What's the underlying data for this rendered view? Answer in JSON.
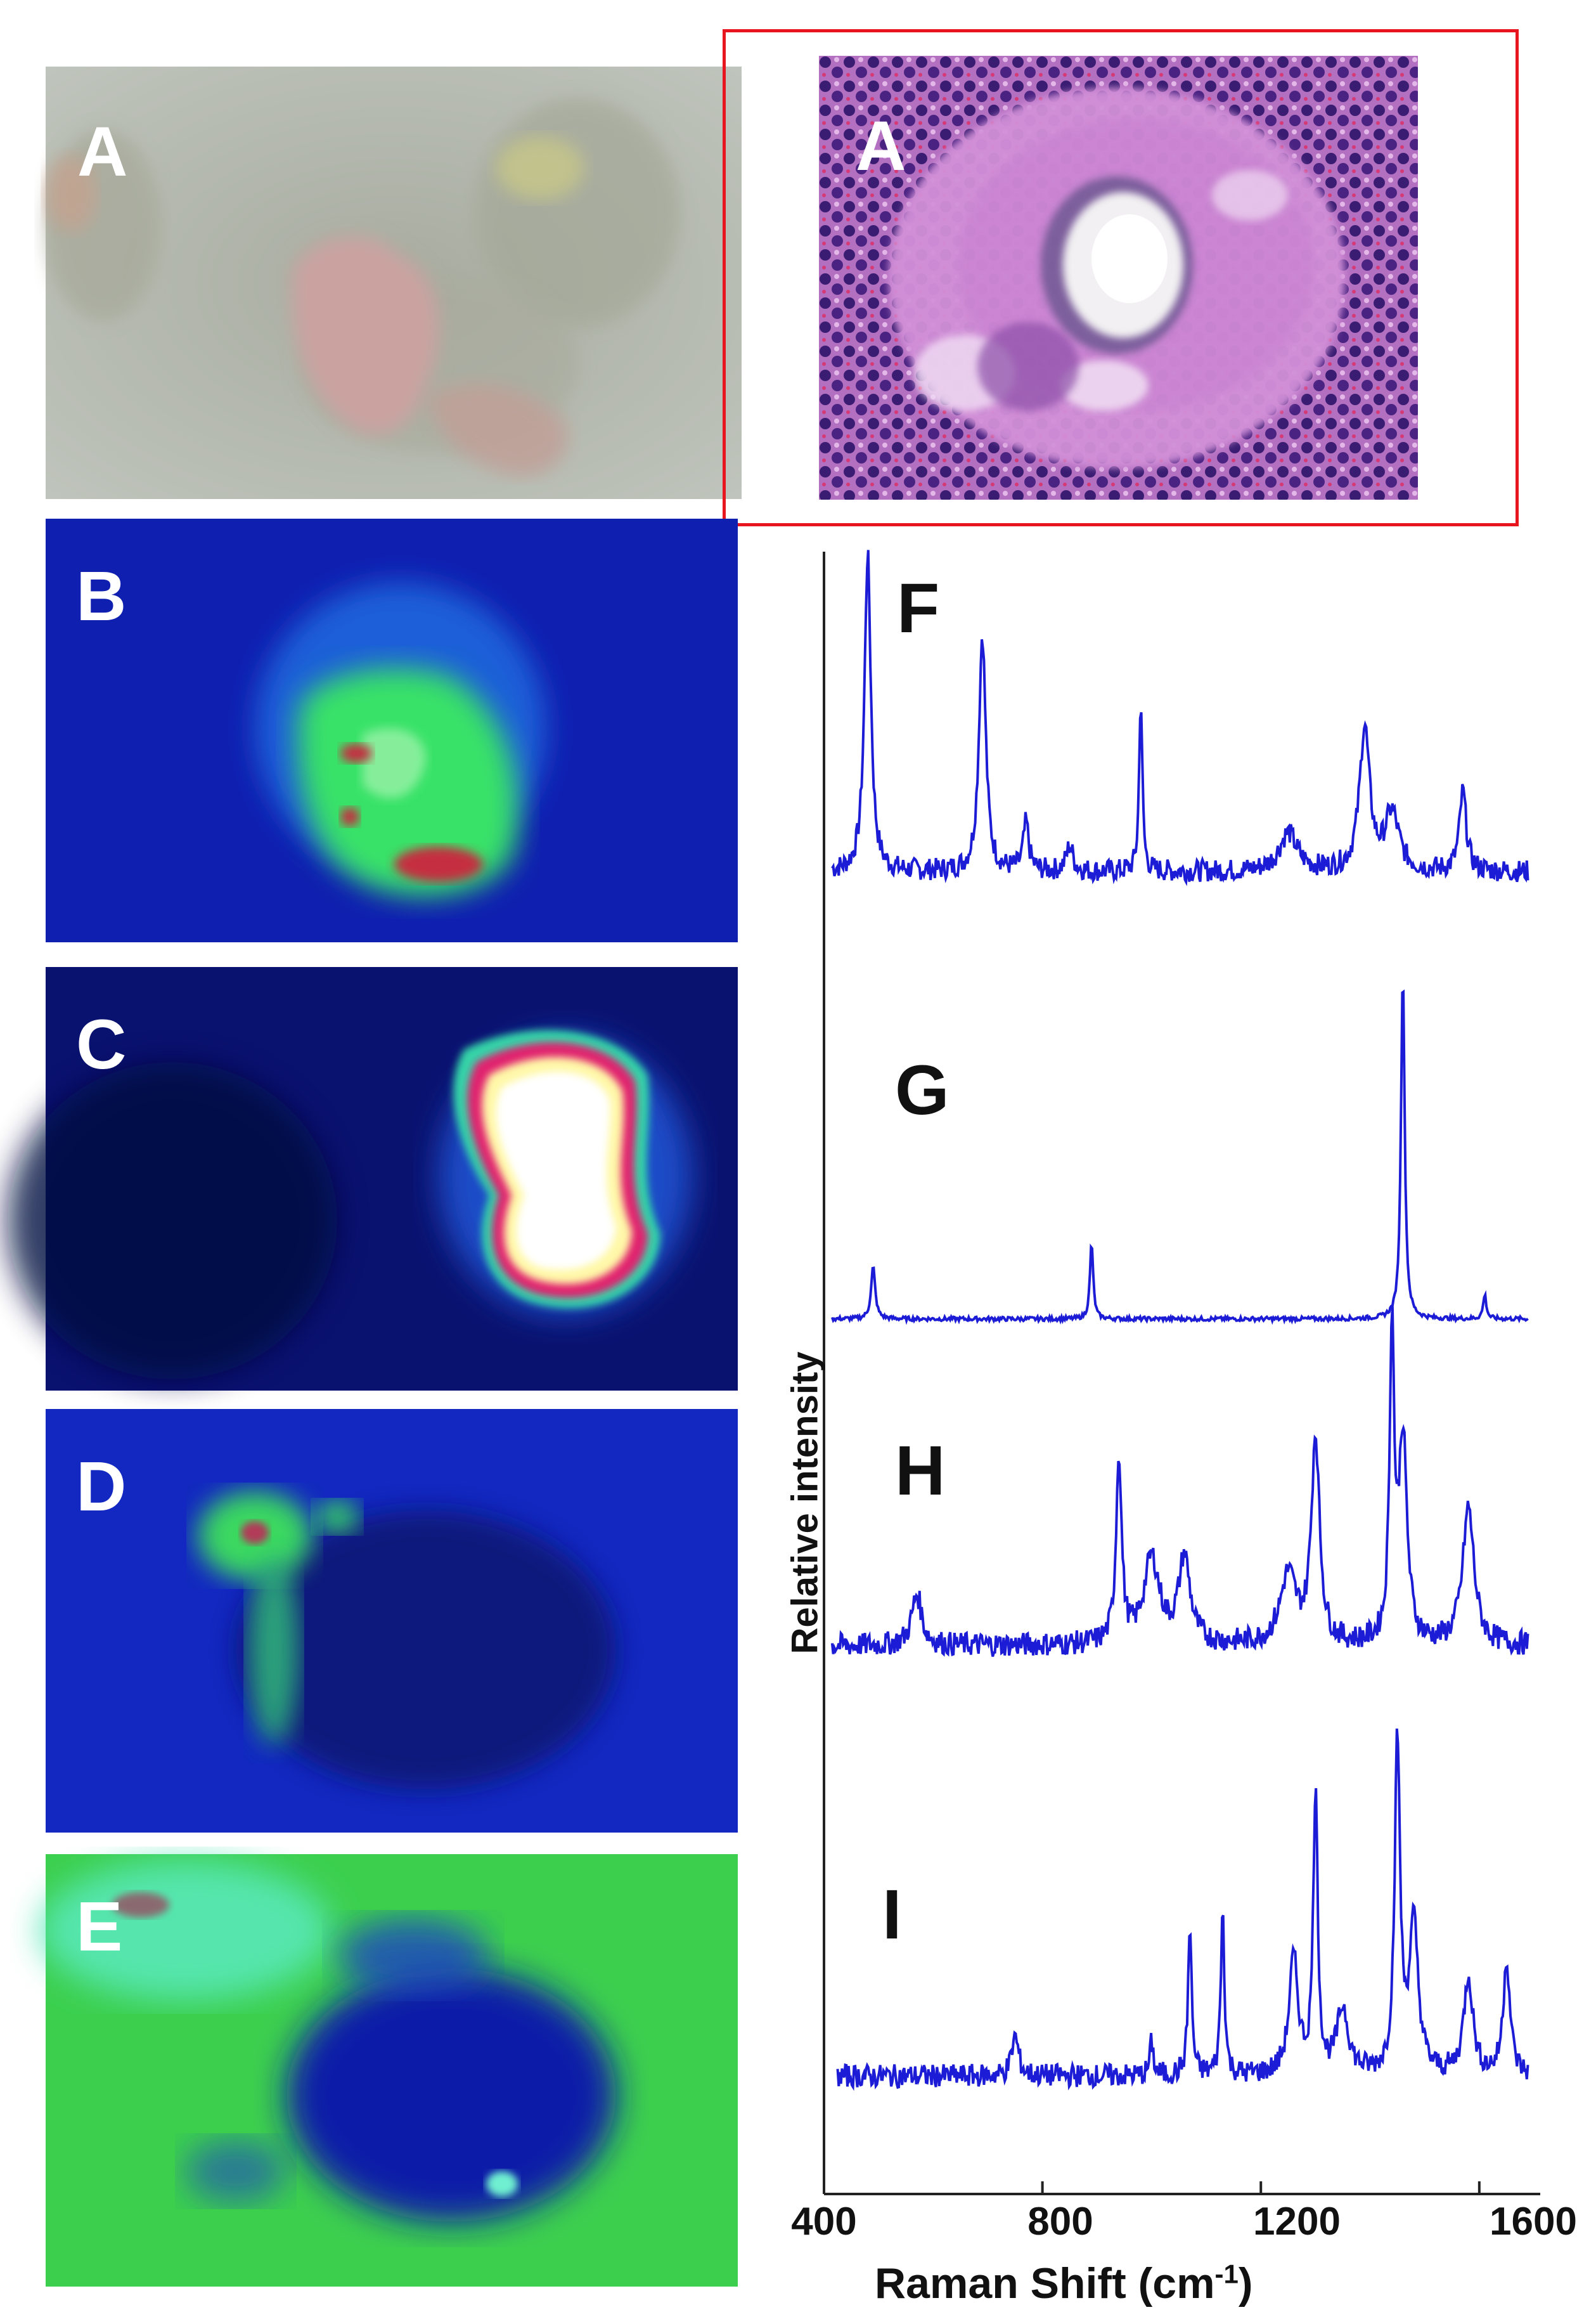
{
  "panels": {
    "A_photo": {
      "label": "A"
    },
    "A_histology": {
      "label": "A"
    },
    "B": {
      "label": "B"
    },
    "C": {
      "label": "C"
    },
    "D": {
      "label": "D"
    },
    "E": {
      "label": "E"
    }
  },
  "colors": {
    "spectrum_line": "#1c1cd6",
    "highlight_box": "#e8151e",
    "map_low": "#0a1a9a",
    "map_mid": "#35e05a",
    "map_high": "#d0203a",
    "map_peak": "#fffbd0"
  },
  "chart_data": {
    "type": "line",
    "xlabel": "Raman Shift (cm-1)",
    "xlabel_main": "Raman Shift (cm",
    "xlabel_sup": "-1",
    "xlabel_close": ")",
    "ylabel": "Relative intensity",
    "xlim": [
      400,
      1700
    ],
    "xticks": [
      400,
      800,
      1200,
      1600
    ],
    "series": [
      {
        "label": "F",
        "peaks": [
          [
            480,
            1.0,
            14
          ],
          [
            690,
            0.75,
            15
          ],
          [
            770,
            0.15,
            12
          ],
          [
            850,
            0.08,
            15
          ],
          [
            980,
            0.55,
            7
          ],
          [
            1250,
            0.12,
            40
          ],
          [
            1390,
            0.45,
            22
          ],
          [
            1440,
            0.18,
            30
          ],
          [
            1570,
            0.25,
            15
          ]
        ],
        "baseline": 0.05
      },
      {
        "label": "G",
        "peaks": [
          [
            490,
            0.15,
            9
          ],
          [
            890,
            0.22,
            7
          ],
          [
            1460,
            1.0,
            8
          ],
          [
            1610,
            0.07,
            7
          ]
        ],
        "baseline": 0.0
      },
      {
        "label": "H",
        "peaks": [
          [
            570,
            0.15,
            22
          ],
          [
            940,
            0.55,
            12
          ],
          [
            1000,
            0.25,
            35
          ],
          [
            1060,
            0.25,
            25
          ],
          [
            1300,
            0.6,
            18
          ],
          [
            1250,
            0.2,
            35
          ],
          [
            1440,
            0.9,
            10
          ],
          [
            1460,
            0.6,
            18
          ],
          [
            1580,
            0.4,
            25
          ]
        ],
        "baseline": 0.12
      },
      {
        "label": "I",
        "peaks": [
          [
            750,
            0.12,
            15
          ],
          [
            1000,
            0.1,
            8
          ],
          [
            1070,
            0.45,
            8
          ],
          [
            1130,
            0.5,
            8
          ],
          [
            1260,
            0.35,
            20
          ],
          [
            1300,
            0.85,
            10
          ],
          [
            1350,
            0.2,
            25
          ],
          [
            1450,
            1.0,
            12
          ],
          [
            1480,
            0.45,
            20
          ],
          [
            1580,
            0.3,
            20
          ],
          [
            1650,
            0.35,
            15
          ]
        ],
        "baseline": 0.05
      }
    ]
  }
}
